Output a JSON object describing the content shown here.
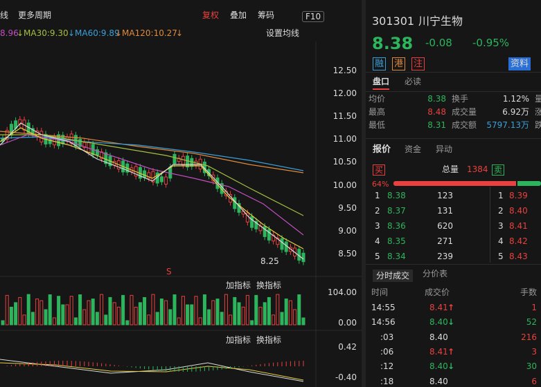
{
  "toolbar": {
    "left": [
      "线",
      "更多周期"
    ],
    "right": [
      "复权",
      "叠加",
      "筹码",
      "F10"
    ]
  },
  "ma_legend": [
    "8.96",
    "↓MA30:9.30",
    "↓MA60:9.89",
    "↓MA120:10.27",
    "↓"
  ],
  "ma_settings": "设置均线",
  "price_axis": [
    "12.50",
    "12.00",
    "11.50",
    "11.00",
    "10.50",
    "10.00",
    "9.50",
    "9.00",
    "8.50"
  ],
  "low_label": "8.25",
  "signal": "S",
  "indicator1": {
    "buttons": [
      "加指标",
      "换指标"
    ],
    "axis": [
      "104.00",
      "0.00"
    ]
  },
  "indicator2": {
    "buttons": [
      "加指标",
      "换指标"
    ],
    "axis": [
      "0.42",
      "-0.40"
    ]
  },
  "quote": {
    "code": "301301",
    "name": "川宁生物",
    "price": "8.38",
    "change": "-0.08",
    "pct": "-0.95%",
    "tags": [
      "融",
      "港",
      "注"
    ],
    "info": "资料"
  },
  "tabs1": [
    "盘口",
    "必读"
  ],
  "stats": [
    [
      "均价",
      "8.38",
      "换手",
      "1.12%",
      "量"
    ],
    [
      "最高",
      "8.48",
      "成交量",
      "6.92万",
      "涨"
    ],
    [
      "最低",
      "8.31",
      "成交额",
      "5797.13万",
      "跌"
    ]
  ],
  "tabs2": [
    "报价",
    "资金",
    "异动"
  ],
  "order_book": {
    "buy": "买",
    "total_label": "总量",
    "total": "1384",
    "sell": "卖",
    "ratio": "64%",
    "bids": [
      [
        "1",
        "8.38",
        "123"
      ],
      [
        "2",
        "8.37",
        "131"
      ],
      [
        "3",
        "8.36",
        "620"
      ],
      [
        "4",
        "8.35",
        "271"
      ],
      [
        "5",
        "8.34",
        "239"
      ]
    ],
    "asks": [
      [
        "1",
        "8.39"
      ],
      [
        "2",
        "8.40"
      ],
      [
        "3",
        "8.41"
      ],
      [
        "4",
        "8.42"
      ],
      [
        "5",
        "8.43"
      ]
    ]
  },
  "tabs3": [
    "分时成交",
    "分价表"
  ],
  "trades": {
    "header": [
      "时间",
      "成交价",
      "手数"
    ],
    "rows": [
      [
        "14:55",
        "8.41",
        "↑",
        "1"
      ],
      [
        "14:56",
        "8.40",
        "↓",
        "52"
      ],
      [
        ":03",
        "8.40",
        "",
        "216"
      ],
      [
        ":06",
        "8.41",
        "↑",
        "3"
      ],
      [
        ":12",
        "8.40",
        "↓",
        "30"
      ],
      [
        ":18",
        "8.40",
        "",
        "6"
      ]
    ]
  }
}
